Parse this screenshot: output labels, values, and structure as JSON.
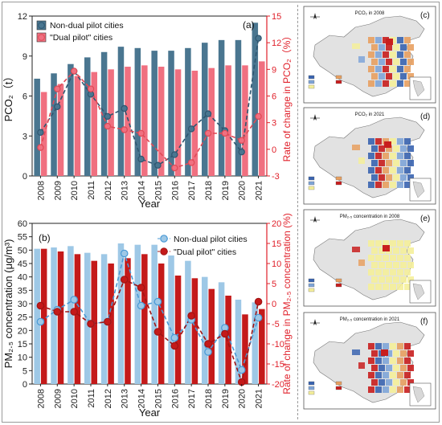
{
  "chart_data": [
    {
      "type": "bar+line",
      "panel_label": "(a)",
      "categories": [
        "2008",
        "2009",
        "2010",
        "2011",
        "2012",
        "2013",
        "2014",
        "2015",
        "2016",
        "2017",
        "2018",
        "2019",
        "2020",
        "2021"
      ],
      "ylabel": "PCO₂（t）",
      "ylabel_right": "Rate of change in PCO₂（%）",
      "xlabel": "Year",
      "ylim": [
        0,
        12
      ],
      "yticks": [
        0,
        3,
        6,
        9,
        12
      ],
      "ylim_right": [
        -3,
        15
      ],
      "yticks_right": [
        -3,
        0,
        3,
        6,
        9,
        12,
        15
      ],
      "legend_position": "top-left",
      "series": [
        {
          "name": "Non-dual pilot cities",
          "kind": "bar",
          "color": "#4a7690",
          "values": [
            7.3,
            7.7,
            8.4,
            8.9,
            9.3,
            9.7,
            9.6,
            9.4,
            9.4,
            9.6,
            10.0,
            10.2,
            10.2,
            11.5
          ]
        },
        {
          "name": "\"Dual pilot\" cities",
          "kind": "bar",
          "color": "#f07080",
          "values": [
            6.3,
            6.9,
            7.5,
            7.8,
            8.0,
            8.2,
            8.3,
            8.2,
            8.0,
            7.9,
            8.1,
            8.3,
            8.3,
            8.6
          ]
        },
        {
          "name": "Non-dual pilot cities",
          "kind": "line",
          "axis": "right",
          "color": "#2e5670",
          "values": [
            1.9,
            4.8,
            8.8,
            6.2,
            3.7,
            4.6,
            -1.1,
            -1.8,
            -0.6,
            2.3,
            4.0,
            2.1,
            -0.3,
            12.5
          ]
        },
        {
          "name": "\"Dual pilot\" cities",
          "kind": "line",
          "axis": "right",
          "color": "#e04a56",
          "values": [
            0.2,
            6.8,
            8.8,
            6.8,
            2.6,
            2.2,
            1.8,
            null,
            -2.1,
            -1.5,
            1.8,
            1.8,
            1.0,
            3.7
          ]
        }
      ]
    },
    {
      "type": "bar+line",
      "panel_label": "(b)",
      "categories": [
        "2008",
        "2009",
        "2010",
        "2011",
        "2012",
        "2013",
        "2014",
        "2015",
        "2016",
        "2017",
        "2018",
        "2019",
        "2020",
        "2021"
      ],
      "ylabel": "PM₂.₅ concentration (μg/m³)",
      "ylabel_right": "Rate of change in PM₂.₅ concentration (%)",
      "xlabel": "Year",
      "ylim": [
        0,
        60
      ],
      "yticks": [
        0,
        5,
        10,
        15,
        20,
        25,
        30,
        35,
        40,
        45,
        50,
        55,
        60
      ],
      "ylim_right": [
        -20,
        20
      ],
      "yticks_right": [
        -20,
        -15,
        -10,
        -5,
        0,
        5,
        10,
        15,
        20
      ],
      "legend_position": "top-right",
      "series": [
        {
          "name": "Non-dual pilot cities",
          "kind": "bar",
          "color": "#9ec8e6",
          "values": [
            50.5,
            51.0,
            51.5,
            49.0,
            48.5,
            52.5,
            52.0,
            52.0,
            48.0,
            46.0,
            40.0,
            38.0,
            31.5,
            30.5
          ]
        },
        {
          "name": "\"Dual pilot\" cities",
          "kind": "bar",
          "color": "#c41a1a",
          "values": [
            50.5,
            49.5,
            48.5,
            46.0,
            45.0,
            47.0,
            48.5,
            45.0,
            40.5,
            39.5,
            35.5,
            33.0,
            26.0,
            28.0
          ]
        },
        {
          "name": "Non-dual pilot cities",
          "kind": "line",
          "axis": "right",
          "color": "#4a9ad6",
          "values": [
            -4.5,
            -1.5,
            1.0,
            -5.0,
            -4.5,
            12.5,
            -0.5,
            0.5,
            -8.5,
            -4.0,
            -12.0,
            -6.0,
            -16.5,
            -3.5
          ]
        },
        {
          "name": "\"Dual pilot\" cities",
          "kind": "line",
          "axis": "right",
          "color": "#a01414",
          "values": [
            -0.5,
            -2.0,
            -2.0,
            -5.0,
            -4.5,
            6.0,
            4.0,
            -7.0,
            -10.5,
            -3.0,
            -10.0,
            -7.5,
            -19.5,
            0.5
          ]
        }
      ]
    }
  ],
  "maps": [
    {
      "label": "(c)",
      "title": "PCO₂ in 2008"
    },
    {
      "label": "(d)",
      "title": "PCO₂ in 2021"
    },
    {
      "label": "(e)",
      "title": "PM₂.₅ concentration in 2008"
    },
    {
      "label": "(f)",
      "title": "PM₂.₅ concentration in 2021"
    }
  ]
}
